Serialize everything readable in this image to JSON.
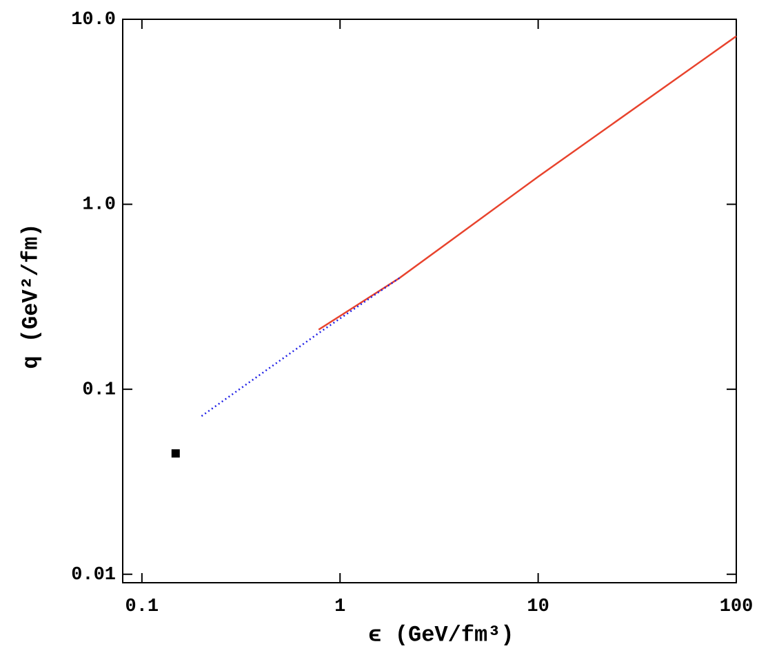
{
  "chart_data": {
    "type": "line",
    "xlabel": "ϵ (GeV/fm³)",
    "ylabel": "q (GeV²/fm)",
    "xscale": "log",
    "yscale": "log",
    "xlim": [
      0.08,
      100
    ],
    "ylim": [
      0.009,
      10
    ],
    "xticks": [
      0.1,
      1,
      10,
      100
    ],
    "yticks": [
      0.01,
      0.1,
      {
        "value": 1,
        "label": "1.0"
      },
      {
        "value": 10,
        "label": "10.0"
      }
    ],
    "series": [
      {
        "color": "#e8432d",
        "style": "solid",
        "x": [
          0.78,
          2,
          10,
          100
        ],
        "values": [
          0.21,
          0.4,
          1.41,
          8.1
        ]
      },
      {
        "color": "#1f1fe6",
        "style": "dotted",
        "x": [
          0.2,
          0.8,
          2
        ],
        "values": [
          0.0716,
          0.205,
          0.4
        ]
      },
      {
        "color": "#000000",
        "style": "marker",
        "x": [
          0.148
        ],
        "values": [
          0.045
        ]
      }
    ]
  }
}
